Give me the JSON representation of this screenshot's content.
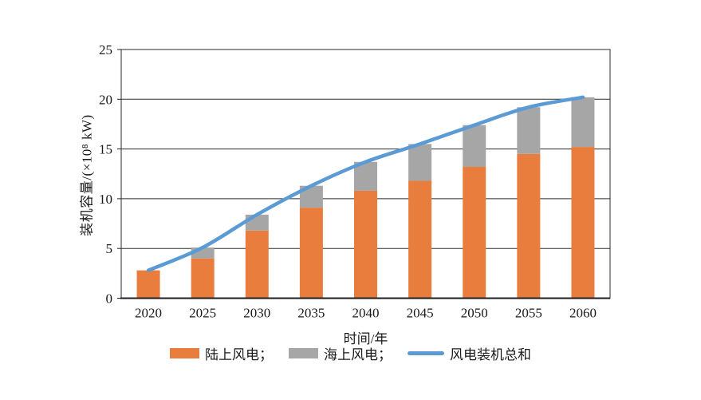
{
  "figure": {
    "y_axis_title": "装机容量/(×10⁸ kW)",
    "x_axis_title": "时间/年",
    "legend": [
      {
        "label": "陆上风电；",
        "swatch": "rect",
        "color": "#E87D3D"
      },
      {
        "label": "海上风电；",
        "swatch": "rect",
        "color": "#A6A6A6"
      },
      {
        "label": "风电装机总和",
        "swatch": "line",
        "color": "#5B9BD5"
      }
    ]
  },
  "chart_data": {
    "type": "bar",
    "subtype": "stacked-bars-with-total-line",
    "title": "",
    "xlabel": "时间/年",
    "ylabel": "装机容量/(×10⁸ kW)",
    "categories": [
      "2020",
      "2025",
      "2030",
      "2035",
      "2040",
      "2045",
      "2050",
      "2055",
      "2060"
    ],
    "series": [
      {
        "name": "陆上风电",
        "type": "bar",
        "color": "#E87D3D",
        "values": [
          2.8,
          4.0,
          6.8,
          9.1,
          10.8,
          11.8,
          13.2,
          14.5,
          15.2
        ]
      },
      {
        "name": "海上风电",
        "type": "bar",
        "color": "#A6A6A6",
        "values": [
          0,
          1.1,
          1.6,
          2.2,
          2.9,
          3.7,
          4.2,
          4.7,
          5.0
        ]
      },
      {
        "name": "风电装机总和",
        "type": "line",
        "color": "#5B9BD5",
        "values": [
          2.8,
          5.1,
          8.4,
          11.3,
          13.7,
          15.5,
          17.4,
          19.2,
          20.2
        ]
      }
    ],
    "ylim": [
      0,
      25
    ],
    "yticks": [
      0,
      5,
      10,
      15,
      20,
      25
    ],
    "grid": true,
    "grid_color": "#2b2b2b",
    "legend_position": "bottom"
  }
}
